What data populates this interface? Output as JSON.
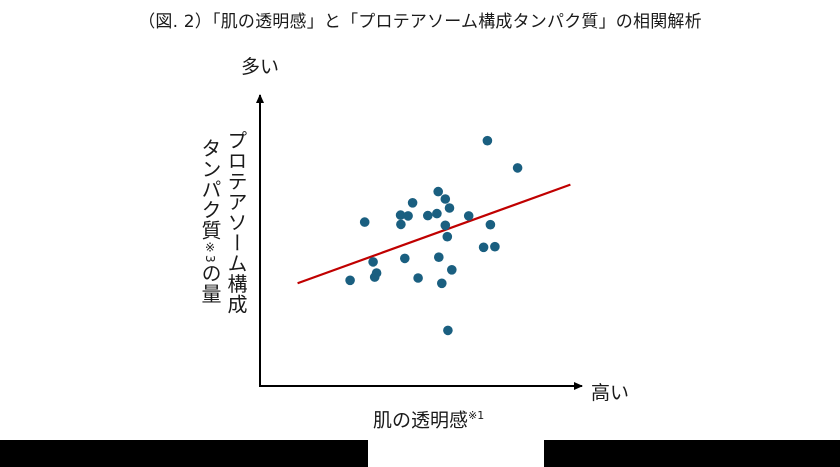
{
  "title": "（図. 2）「肌の透明感」と「プロテアソーム構成タンパク質」の相関解析",
  "labels": {
    "y_top": "多い",
    "x_right": "高い",
    "x_axis": "肌の透明感",
    "x_axis_note": "※1",
    "y_axis_line1": "プロテアソーム構成",
    "y_axis_line2_a": "タンパク質",
    "y_axis_line2_note": "※3",
    "y_axis_line2_b": "の量"
  },
  "colors": {
    "points": "#1a5f80",
    "trend_line": "#c00000",
    "axis": "#000000"
  },
  "chart_data": {
    "type": "scatter",
    "title": "（図. 2）「肌の透明感」と「プロテアソーム構成タンパク質」の相関解析",
    "xlabel": "肌の透明感※1",
    "ylabel": "プロテアソーム構成タンパク質※3の量",
    "x_axis_end_label": "高い",
    "y_axis_end_label": "多い",
    "xlim": [
      0,
      100
    ],
    "ylim": [
      0,
      100
    ],
    "grid": false,
    "ticks": "none (arbitrary relative scale)",
    "points": [
      {
        "x": 70.2,
        "y": 83.7
      },
      {
        "x": 79.5,
        "y": 74.4
      },
      {
        "x": 55.0,
        "y": 66.3
      },
      {
        "x": 57.2,
        "y": 63.8
      },
      {
        "x": 47.1,
        "y": 62.5
      },
      {
        "x": 58.5,
        "y": 60.7
      },
      {
        "x": 32.3,
        "y": 55.9
      },
      {
        "x": 43.4,
        "y": 58.3
      },
      {
        "x": 45.7,
        "y": 58.0
      },
      {
        "x": 43.5,
        "y": 55.1
      },
      {
        "x": 51.8,
        "y": 58.1
      },
      {
        "x": 54.6,
        "y": 58.8
      },
      {
        "x": 64.4,
        "y": 58.0
      },
      {
        "x": 57.2,
        "y": 54.8
      },
      {
        "x": 71.1,
        "y": 55.0
      },
      {
        "x": 57.8,
        "y": 50.9
      },
      {
        "x": 69.0,
        "y": 47.3
      },
      {
        "x": 72.5,
        "y": 47.5
      },
      {
        "x": 34.9,
        "y": 42.3
      },
      {
        "x": 44.7,
        "y": 43.5
      },
      {
        "x": 55.2,
        "y": 43.9
      },
      {
        "x": 36.0,
        "y": 38.5
      },
      {
        "x": 35.4,
        "y": 37.1
      },
      {
        "x": 27.8,
        "y": 36.0
      },
      {
        "x": 48.8,
        "y": 36.8
      },
      {
        "x": 59.2,
        "y": 39.6
      },
      {
        "x": 56.1,
        "y": 35.0
      },
      {
        "x": 58.0,
        "y": 18.9
      }
    ],
    "trend_line": {
      "x1": 11.6,
      "y1": 35.0,
      "x2": 95.8,
      "y2": 68.7,
      "color": "#c00000"
    },
    "legend": "none"
  }
}
